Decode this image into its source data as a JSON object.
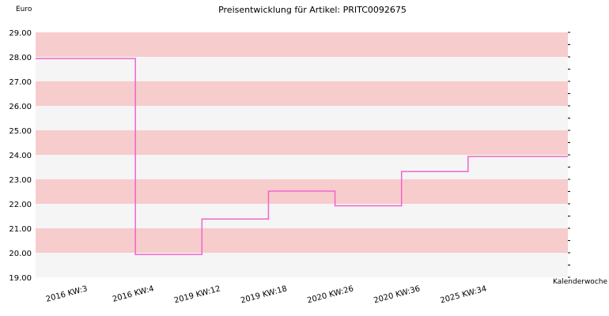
{
  "chart_data": {
    "type": "line",
    "step": true,
    "title": "Preisentwicklung für Artikel: PRITC0092675",
    "ylabel": "Euro",
    "xlabel": "Kalenderwoche",
    "ylim": [
      19,
      29
    ],
    "yticks": [
      "19.00",
      "20.00",
      "21.00",
      "22.00",
      "23.00",
      "24.00",
      "25.00",
      "26.00",
      "27.00",
      "28.00",
      "29.00"
    ],
    "categories": [
      "2016 KW:3",
      "2016 KW:4",
      "2019 KW:12",
      "2019 KW:18",
      "2020 KW:26",
      "2020 KW:36",
      "2025 KW:34"
    ],
    "series": [
      {
        "values": [
          27.93,
          19.93,
          21.38,
          22.52,
          21.92,
          23.32,
          23.93
        ]
      }
    ],
    "band_colors": [
      "#f7cccc",
      "#f5f5f5"
    ],
    "line_color": "#ee66cc",
    "grid": true
  }
}
